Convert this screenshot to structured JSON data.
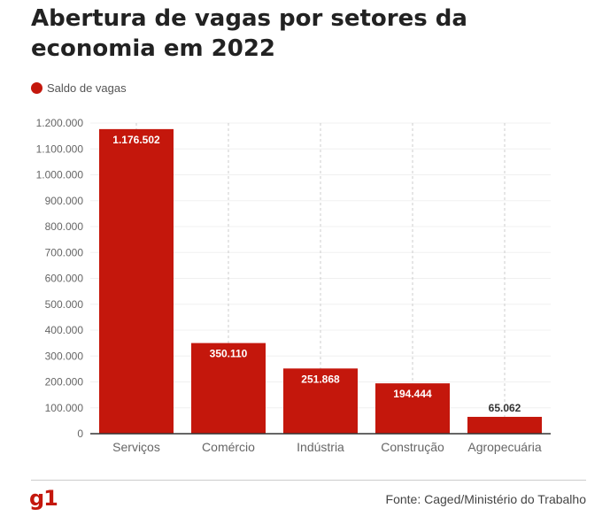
{
  "title": "Abertura de vagas por setores da economia em 2022",
  "legend_label": "Saldo de vagas",
  "source": "Fonte: Caged/Ministério do Trabalho",
  "logo": "g1",
  "colors": {
    "bar": "#c4170c",
    "label_light": "#ffffff",
    "label_dark": "#333333"
  },
  "chart_data": {
    "type": "bar",
    "title": "Abertura de vagas por setores da economia em 2022",
    "categories": [
      "Serviços",
      "Comércio",
      "Indústria",
      "Construção",
      "Agropecuária"
    ],
    "series": [
      {
        "name": "Saldo de vagas",
        "values": [
          1176502,
          350110,
          251868,
          194444,
          65062
        ]
      }
    ],
    "value_labels": [
      "1.176.502",
      "350.110",
      "251.868",
      "194.444",
      "65.062"
    ],
    "yticks": [
      0,
      100000,
      200000,
      300000,
      400000,
      500000,
      600000,
      700000,
      800000,
      900000,
      1000000,
      1100000,
      1200000
    ],
    "ytick_labels": [
      "0",
      "100.000",
      "200.000",
      "300.000",
      "400.000",
      "500.000",
      "600.000",
      "700.000",
      "800.000",
      "900.000",
      "1.000.000",
      "1.100.000",
      "1.200.000"
    ],
    "ylim": [
      0,
      1200000
    ],
    "grid": "vertical dashed",
    "legend_position": "top-left"
  }
}
